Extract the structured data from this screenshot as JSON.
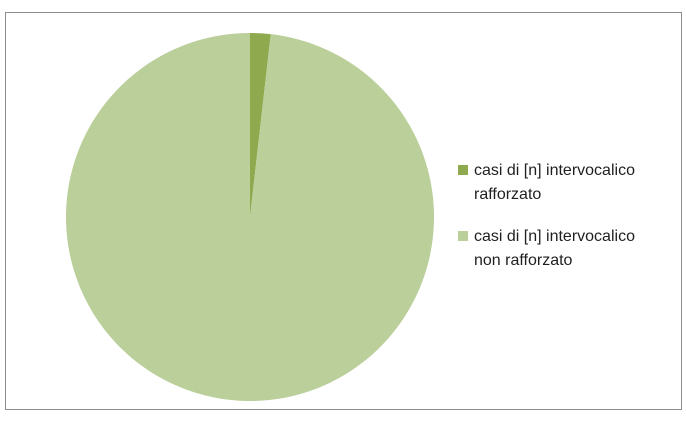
{
  "chart_data": {
    "type": "pie",
    "title": "",
    "series": [
      {
        "values": [
          1.8,
          98.2
        ]
      }
    ],
    "categories": [
      "casi di [n] intervocalico rafforzato",
      "casi di [n] intervocalico non rafforzato"
    ],
    "slices": [
      {
        "label": "casi di [n] intervocalico rafforzato",
        "label_lines": [
          "casi di [n] intervocalico",
          "rafforzato"
        ],
        "value": 1.8,
        "color": "#8faa4e"
      },
      {
        "label": "casi di [n] intervocalico non rafforzato",
        "label_lines": [
          "casi di [n] intervocalico",
          "non rafforzato"
        ],
        "value": 98.2,
        "color": "#bacf99"
      }
    ],
    "legend_position": "right",
    "start_angle": "top, clockwise"
  }
}
